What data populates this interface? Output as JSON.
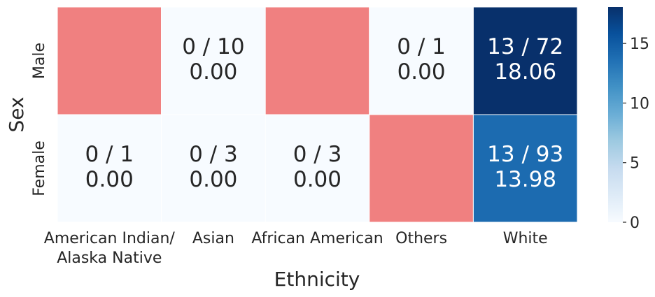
{
  "chart_data": {
    "type": "heatmap",
    "title": "",
    "xlabel": "Ethnicity",
    "ylabel": "Sex",
    "x_categories": [
      [
        "American Indian/",
        "Alaska Native"
      ],
      [
        "Asian"
      ],
      [
        "African American"
      ],
      [
        "Others"
      ],
      [
        "White"
      ]
    ],
    "y_categories": [
      "Male",
      "Female"
    ],
    "values": [
      [
        null,
        0.0,
        null,
        0.0,
        18.06
      ],
      [
        0.0,
        0.0,
        0.0,
        null,
        13.98
      ]
    ],
    "annotations": [
      [
        null,
        "0 / 10",
        null,
        "0 / 1",
        "13 / 72"
      ],
      [
        "0 / 1",
        "0 / 3",
        "0 / 3",
        null,
        "13 / 93"
      ]
    ],
    "value_labels": [
      [
        null,
        "0.00",
        null,
        "0.00",
        "18.06"
      ],
      [
        "0.00",
        "0.00",
        "0.00",
        null,
        "13.98"
      ]
    ],
    "missing_color": "#f08080",
    "colormap": "Blues",
    "colorbar": {
      "min": 0,
      "max": 18.06,
      "ticks": [
        "0",
        "5",
        "10",
        "15"
      ],
      "tick_values": [
        0,
        5,
        10,
        15
      ]
    },
    "grid": false
  }
}
